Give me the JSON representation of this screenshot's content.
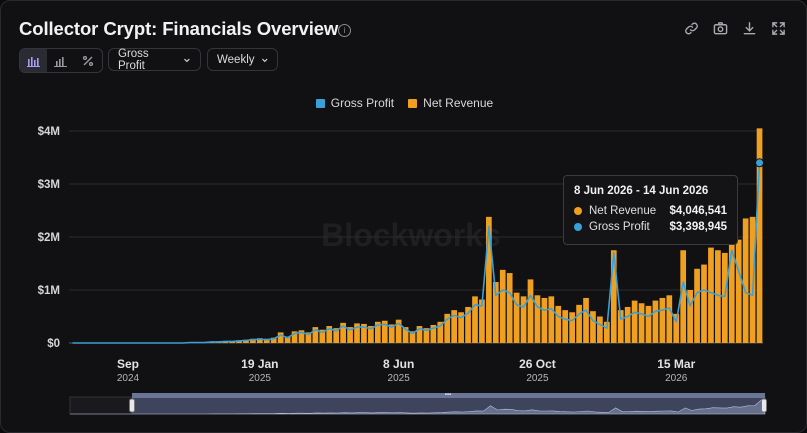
{
  "header": {
    "title": "Collector Crypt: Financials Overview",
    "metric_dropdown": "Gross Profit",
    "period_dropdown": "Weekly"
  },
  "toolbar": {
    "icons": [
      "link-icon",
      "camera-icon",
      "download-icon",
      "fullscreen-icon"
    ],
    "chart_type_icons": [
      "bar-chart-icon",
      "stacked-bar-icon",
      "percent-icon"
    ]
  },
  "colors": {
    "gross_profit": "#3aa0d8",
    "net_revenue": "#f0a020",
    "background": "#111113"
  },
  "watermark": "Blockworks",
  "tooltip": {
    "date_range": "8 Jun 2026 - 14 Jun 2026",
    "rows": [
      {
        "name": "Net Revenue",
        "value": "$4,046,541",
        "color": "#f0a020"
      },
      {
        "name": "Gross Profit",
        "value": "$3,398,945",
        "color": "#3aa0d8"
      }
    ]
  },
  "chart_data": {
    "type": "bar",
    "x_ticks": [
      {
        "label": "Sep",
        "year": "2024",
        "index": 8
      },
      {
        "label": "19 Jan",
        "year": "2025",
        "index": 27
      },
      {
        "label": "8 Jun",
        "year": "2025",
        "index": 47
      },
      {
        "label": "26 Oct",
        "year": "2025",
        "index": 67
      },
      {
        "label": "15 Mar",
        "year": "2026",
        "index": 87
      }
    ],
    "y_ticks": [
      "$0",
      "$1M",
      "$2M",
      "$3M",
      "$4M"
    ],
    "ylim": [
      0,
      4
    ],
    "yunit": "$M",
    "legend": "top-center",
    "series": [
      {
        "name": "Net Revenue",
        "style": "bar",
        "values": [
          0,
          0,
          0,
          0,
          0,
          0,
          0,
          0,
          0,
          0,
          0,
          0,
          0,
          0,
          0,
          0,
          0,
          0.01,
          0.01,
          0.01,
          0.02,
          0.02,
          0.03,
          0.03,
          0.05,
          0.06,
          0.08,
          0.09,
          0.08,
          0.1,
          0.2,
          0.12,
          0.22,
          0.24,
          0.2,
          0.3,
          0.25,
          0.32,
          0.28,
          0.38,
          0.3,
          0.37,
          0.36,
          0.32,
          0.4,
          0.42,
          0.35,
          0.44,
          0.3,
          0.22,
          0.32,
          0.28,
          0.34,
          0.4,
          0.55,
          0.62,
          0.58,
          0.68,
          0.88,
          0.82,
          2.38,
          1.15,
          1.38,
          1.32,
          0.95,
          0.88,
          1.2,
          0.9,
          0.85,
          0.88,
          0.7,
          0.62,
          0.58,
          0.72,
          0.85,
          0.6,
          0.5,
          0.4,
          1.75,
          0.62,
          0.68,
          0.8,
          0.75,
          0.7,
          0.8,
          0.85,
          0.9,
          0.55,
          1.75,
          1.0,
          1.4,
          1.48,
          1.8,
          1.75,
          1.7,
          2.08,
          1.95,
          2.35,
          2.38,
          4.05
        ],
        "x_last_label": "14 Jun 2026"
      },
      {
        "name": "Gross Profit",
        "style": "line",
        "values": [
          0,
          0,
          0,
          0,
          0,
          0,
          0,
          0,
          0,
          0,
          0,
          0,
          0,
          0,
          0,
          0,
          0,
          0.01,
          0.01,
          0.01,
          0.02,
          0.02,
          0.03,
          0.03,
          0.04,
          0.05,
          0.06,
          0.07,
          0.06,
          0.08,
          0.15,
          0.1,
          0.18,
          0.2,
          0.16,
          0.25,
          0.2,
          0.27,
          0.23,
          0.32,
          0.25,
          0.3,
          0.3,
          0.27,
          0.34,
          0.35,
          0.3,
          0.37,
          0.26,
          0.18,
          0.27,
          0.24,
          0.28,
          0.32,
          0.45,
          0.52,
          0.48,
          0.56,
          0.72,
          0.7,
          2.2,
          0.9,
          1.0,
          0.95,
          0.72,
          0.68,
          0.9,
          0.68,
          0.62,
          0.65,
          0.5,
          0.45,
          0.42,
          0.55,
          0.62,
          0.42,
          0.35,
          0.28,
          1.7,
          0.45,
          0.5,
          0.58,
          0.55,
          0.5,
          0.6,
          0.62,
          0.66,
          0.4,
          1.15,
          0.7,
          0.95,
          1.0,
          0.95,
          0.9,
          0.88,
          1.75,
          1.35,
          0.95,
          0.9,
          3.4
        ]
      }
    ]
  }
}
